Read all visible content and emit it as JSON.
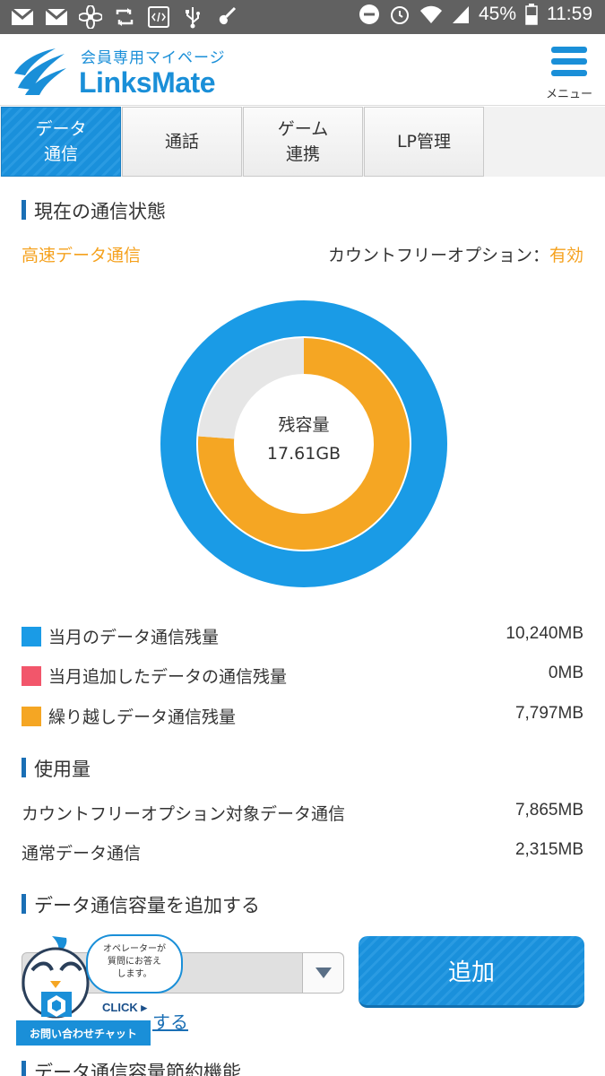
{
  "statusbar": {
    "battery": "45%",
    "time": "11:59",
    "icons_left": [
      "gmail-icon",
      "gmail-icon",
      "fan-icon",
      "retweet-icon",
      "code-icon",
      "usb-icon",
      "guitar-icon"
    ],
    "icons_right": [
      "dnd-icon",
      "alarm-icon",
      "wifi-icon",
      "signal-icon",
      "battery-icon"
    ]
  },
  "header": {
    "logo_sub": "会員専用マイページ",
    "logo_name": "LinksMate",
    "menu_label": "メニュー",
    "brand_color": "#1a8fd8"
  },
  "tabs": [
    {
      "label_line1": "データ",
      "label_line2": "通信",
      "active": true
    },
    {
      "label_line1": "通話",
      "label_line2": "",
      "active": false
    },
    {
      "label_line1": "ゲーム",
      "label_line2": "連携",
      "active": false
    },
    {
      "label_line1": "LP管理",
      "label_line2": "",
      "active": false
    }
  ],
  "status": {
    "title": "現在の通信状態",
    "mode": "高速データ通信",
    "option_label": "カウントフリーオプション：",
    "option_value": "有効"
  },
  "chart_data": {
    "type": "pie",
    "center_label": "残容量",
    "center_value": "17.61GB",
    "outer_ring": [
      {
        "name": "当月のデータ通信残量",
        "value": 10240,
        "color": "#1a9be6"
      }
    ],
    "inner_ring": [
      {
        "name": "繰り越しデータ通信残量",
        "value": 7797,
        "color": "#f5a623"
      },
      {
        "name": "",
        "value": 2443,
        "color": "#e6e6e6"
      }
    ]
  },
  "legend": [
    {
      "label": "当月のデータ通信残量",
      "value": "10,240MB",
      "color": "#1a9be6"
    },
    {
      "label": "当月追加したデータの通信残量",
      "value": "0MB",
      "color": "#f2566b"
    },
    {
      "label": "繰り越しデータ通信残量",
      "value": "7,797MB",
      "color": "#f5a623"
    }
  ],
  "usage": {
    "title": "使用量",
    "rows": [
      {
        "label": "カウントフリーオプション対象データ通信",
        "value": "7,865MB"
      },
      {
        "label": "通常データ通信",
        "value": "2,315MB"
      }
    ]
  },
  "add": {
    "title": "データ通信容量を追加する",
    "button": "追加",
    "link": "する"
  },
  "chat": {
    "bubble_line1": "オペレーターが",
    "bubble_line2": "質問にお答え",
    "bubble_line3": "します。",
    "click": "CLICK",
    "bar": "お問い合わせチャット"
  },
  "bottom_title": "データ通信容量節約機能"
}
